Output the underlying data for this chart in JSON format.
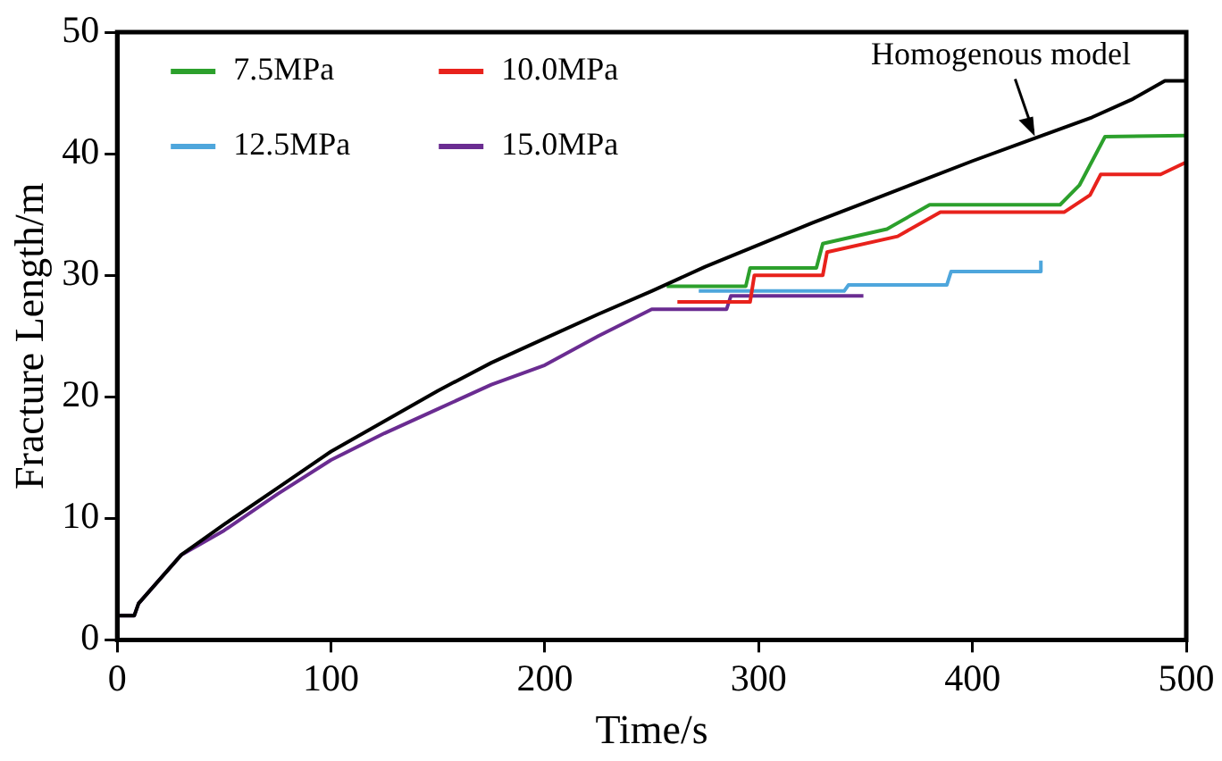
{
  "chart_data": {
    "type": "line",
    "xlabel": "Time/s",
    "ylabel": "Fracture Length/m",
    "xlim": [
      0,
      500
    ],
    "ylim": [
      0,
      50
    ],
    "xticks": [
      0,
      100,
      200,
      300,
      400,
      500
    ],
    "yticks": [
      0,
      10,
      20,
      30,
      40,
      50
    ],
    "grid": false,
    "legend": "top left",
    "marker": "none",
    "line_style": "solid",
    "annotations": [
      {
        "text": "Homogenous model",
        "x": 430,
        "y": 41
      }
    ],
    "series": [
      {
        "color": "#000000",
        "x": [
          0,
          8,
          10,
          20,
          30,
          50,
          75,
          100,
          125,
          150,
          175,
          200,
          225,
          250,
          275,
          300,
          325,
          350,
          375,
          400,
          425,
          456,
          475,
          490,
          500
        ],
        "values": [
          2,
          2,
          3,
          5,
          7,
          9.5,
          12.5,
          15.5,
          18,
          20.5,
          22.8,
          24.8,
          26.8,
          28.7,
          30.7,
          32.5,
          34.3,
          36,
          37.7,
          39.4,
          41,
          43,
          44.5,
          46,
          46
        ]
      },
      {
        "name": "7.5MPa",
        "color": "#2ca02c",
        "x": [
          257,
          294,
          296,
          327,
          330,
          360,
          380,
          441,
          450,
          462,
          500
        ],
        "values": [
          29.1,
          29.1,
          30.6,
          30.6,
          32.6,
          33.8,
          35.8,
          35.8,
          37.4,
          41.4,
          41.5
        ]
      },
      {
        "name": "10.0MPa",
        "color": "#e8221c",
        "x": [
          262,
          296,
          298,
          330,
          332,
          365,
          385,
          443,
          455,
          460,
          488,
          500,
          500
        ],
        "values": [
          27.8,
          27.8,
          30.0,
          30.0,
          31.9,
          33.2,
          35.2,
          35.2,
          36.6,
          38.3,
          38.3,
          39.3,
          40.2
        ]
      },
      {
        "name": "12.5MPa",
        "color": "#4ea6dc",
        "x": [
          272,
          340,
          342,
          388,
          390,
          432,
          432
        ],
        "values": [
          28.7,
          28.7,
          29.2,
          29.2,
          30.3,
          30.3,
          31.2
        ]
      },
      {
        "name": "15.0MPa",
        "color": "#6a2c91",
        "x": [
          0,
          8,
          10,
          20,
          30,
          50,
          75,
          100,
          125,
          150,
          175,
          200,
          225,
          250,
          285,
          287,
          349
        ],
        "values": [
          2,
          2,
          3,
          5,
          7,
          9,
          12,
          14.8,
          17,
          19,
          21,
          22.6,
          25,
          27.2,
          27.2,
          28.3,
          28.3
        ]
      }
    ]
  }
}
